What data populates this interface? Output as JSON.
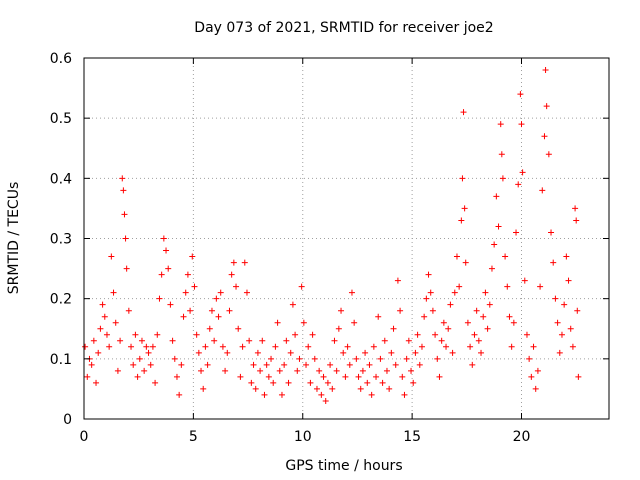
{
  "chart_data": {
    "type": "scatter",
    "title": "Day 073 of 2021, SRMTID for receiver joe2",
    "xlabel": "GPS time / hours",
    "ylabel": "SRMTID / TECUs",
    "xlim": [
      0,
      24
    ],
    "ylim": [
      0,
      0.6
    ],
    "xticks": [
      0,
      5,
      10,
      15,
      20
    ],
    "yticks": [
      0,
      0.1,
      0.2,
      0.3,
      0.4,
      0.5,
      0.6
    ],
    "grid": true,
    "marker": "plus",
    "color": "#ff0000",
    "series": [
      {
        "name": "SRMTID",
        "points": [
          [
            0.05,
            0.12
          ],
          [
            0.15,
            0.07
          ],
          [
            0.25,
            0.1
          ],
          [
            0.35,
            0.09
          ],
          [
            0.45,
            0.13
          ],
          [
            0.55,
            0.06
          ],
          [
            0.65,
            0.11
          ],
          [
            0.75,
            0.15
          ],
          [
            0.85,
            0.19
          ],
          [
            0.95,
            0.17
          ],
          [
            1.05,
            0.14
          ],
          [
            1.15,
            0.12
          ],
          [
            1.25,
            0.27
          ],
          [
            1.35,
            0.21
          ],
          [
            1.45,
            0.16
          ],
          [
            1.55,
            0.08
          ],
          [
            1.65,
            0.13
          ],
          [
            1.75,
            0.4
          ],
          [
            1.8,
            0.38
          ],
          [
            1.85,
            0.34
          ],
          [
            1.9,
            0.3
          ],
          [
            1.95,
            0.25
          ],
          [
            2.05,
            0.18
          ],
          [
            2.15,
            0.12
          ],
          [
            2.25,
            0.09
          ],
          [
            2.35,
            0.14
          ],
          [
            2.45,
            0.07
          ],
          [
            2.55,
            0.1
          ],
          [
            2.65,
            0.13
          ],
          [
            2.75,
            0.08
          ],
          [
            2.85,
            0.12
          ],
          [
            2.95,
            0.11
          ],
          [
            3.05,
            0.09
          ],
          [
            3.15,
            0.12
          ],
          [
            3.25,
            0.06
          ],
          [
            3.35,
            0.14
          ],
          [
            3.45,
            0.2
          ],
          [
            3.55,
            0.24
          ],
          [
            3.65,
            0.3
          ],
          [
            3.75,
            0.28
          ],
          [
            3.85,
            0.25
          ],
          [
            3.95,
            0.19
          ],
          [
            4.05,
            0.13
          ],
          [
            4.15,
            0.1
          ],
          [
            4.25,
            0.07
          ],
          [
            4.35,
            0.04
          ],
          [
            4.45,
            0.09
          ],
          [
            4.55,
            0.17
          ],
          [
            4.65,
            0.21
          ],
          [
            4.75,
            0.24
          ],
          [
            4.85,
            0.18
          ],
          [
            4.95,
            0.27
          ],
          [
            5.05,
            0.22
          ],
          [
            5.15,
            0.14
          ],
          [
            5.25,
            0.11
          ],
          [
            5.35,
            0.08
          ],
          [
            5.45,
            0.05
          ],
          [
            5.55,
            0.12
          ],
          [
            5.65,
            0.09
          ],
          [
            5.75,
            0.15
          ],
          [
            5.85,
            0.18
          ],
          [
            5.95,
            0.13
          ],
          [
            6.05,
            0.2
          ],
          [
            6.15,
            0.17
          ],
          [
            6.25,
            0.21
          ],
          [
            6.35,
            0.12
          ],
          [
            6.45,
            0.08
          ],
          [
            6.55,
            0.11
          ],
          [
            6.65,
            0.18
          ],
          [
            6.75,
            0.24
          ],
          [
            6.85,
            0.26
          ],
          [
            6.95,
            0.22
          ],
          [
            7.05,
            0.15
          ],
          [
            7.15,
            0.07
          ],
          [
            7.25,
            0.12
          ],
          [
            7.35,
            0.26
          ],
          [
            7.45,
            0.21
          ],
          [
            7.55,
            0.13
          ],
          [
            7.65,
            0.06
          ],
          [
            7.75,
            0.09
          ],
          [
            7.85,
            0.05
          ],
          [
            7.95,
            0.11
          ],
          [
            8.05,
            0.08
          ],
          [
            8.15,
            0.13
          ],
          [
            8.25,
            0.04
          ],
          [
            8.35,
            0.09
          ],
          [
            8.45,
            0.07
          ],
          [
            8.55,
            0.1
          ],
          [
            8.65,
            0.06
          ],
          [
            8.75,
            0.12
          ],
          [
            8.85,
            0.16
          ],
          [
            8.95,
            0.08
          ],
          [
            9.05,
            0.04
          ],
          [
            9.15,
            0.09
          ],
          [
            9.25,
            0.13
          ],
          [
            9.35,
            0.06
          ],
          [
            9.45,
            0.11
          ],
          [
            9.55,
            0.19
          ],
          [
            9.65,
            0.14
          ],
          [
            9.75,
            0.08
          ],
          [
            9.85,
            0.1
          ],
          [
            9.95,
            0.22
          ],
          [
            10.05,
            0.16
          ],
          [
            10.15,
            0.09
          ],
          [
            10.25,
            0.12
          ],
          [
            10.35,
            0.06
          ],
          [
            10.45,
            0.14
          ],
          [
            10.55,
            0.1
          ],
          [
            10.65,
            0.05
          ],
          [
            10.75,
            0.08
          ],
          [
            10.85,
            0.04
          ],
          [
            10.95,
            0.07
          ],
          [
            11.05,
            0.03
          ],
          [
            11.15,
            0.06
          ],
          [
            11.25,
            0.09
          ],
          [
            11.35,
            0.05
          ],
          [
            11.45,
            0.13
          ],
          [
            11.55,
            0.08
          ],
          [
            11.65,
            0.15
          ],
          [
            11.75,
            0.18
          ],
          [
            11.85,
            0.11
          ],
          [
            11.95,
            0.07
          ],
          [
            12.05,
            0.12
          ],
          [
            12.15,
            0.09
          ],
          [
            12.25,
            0.21
          ],
          [
            12.35,
            0.16
          ],
          [
            12.45,
            0.1
          ],
          [
            12.55,
            0.07
          ],
          [
            12.65,
            0.05
          ],
          [
            12.75,
            0.08
          ],
          [
            12.85,
            0.11
          ],
          [
            12.95,
            0.06
          ],
          [
            13.05,
            0.09
          ],
          [
            13.15,
            0.04
          ],
          [
            13.25,
            0.12
          ],
          [
            13.35,
            0.07
          ],
          [
            13.45,
            0.17
          ],
          [
            13.55,
            0.1
          ],
          [
            13.65,
            0.06
          ],
          [
            13.75,
            0.13
          ],
          [
            13.85,
            0.08
          ],
          [
            13.95,
            0.05
          ],
          [
            14.05,
            0.11
          ],
          [
            14.15,
            0.15
          ],
          [
            14.25,
            0.09
          ],
          [
            14.35,
            0.23
          ],
          [
            14.45,
            0.18
          ],
          [
            14.55,
            0.07
          ],
          [
            14.65,
            0.04
          ],
          [
            14.75,
            0.1
          ],
          [
            14.85,
            0.13
          ],
          [
            14.95,
            0.08
          ],
          [
            15.05,
            0.06
          ],
          [
            15.15,
            0.11
          ],
          [
            15.25,
            0.14
          ],
          [
            15.35,
            0.09
          ],
          [
            15.45,
            0.12
          ],
          [
            15.55,
            0.17
          ],
          [
            15.65,
            0.2
          ],
          [
            15.75,
            0.24
          ],
          [
            15.85,
            0.21
          ],
          [
            15.95,
            0.18
          ],
          [
            16.05,
            0.14
          ],
          [
            16.15,
            0.1
          ],
          [
            16.25,
            0.07
          ],
          [
            16.35,
            0.13
          ],
          [
            16.45,
            0.16
          ],
          [
            16.55,
            0.12
          ],
          [
            16.65,
            0.15
          ],
          [
            16.75,
            0.19
          ],
          [
            16.85,
            0.11
          ],
          [
            16.95,
            0.21
          ],
          [
            17.05,
            0.27
          ],
          [
            17.15,
            0.22
          ],
          [
            17.25,
            0.33
          ],
          [
            17.3,
            0.4
          ],
          [
            17.35,
            0.51
          ],
          [
            17.4,
            0.35
          ],
          [
            17.45,
            0.26
          ],
          [
            17.55,
            0.16
          ],
          [
            17.65,
            0.12
          ],
          [
            17.75,
            0.09
          ],
          [
            17.85,
            0.14
          ],
          [
            17.95,
            0.18
          ],
          [
            18.05,
            0.13
          ],
          [
            18.15,
            0.11
          ],
          [
            18.25,
            0.17
          ],
          [
            18.35,
            0.21
          ],
          [
            18.45,
            0.15
          ],
          [
            18.55,
            0.19
          ],
          [
            18.65,
            0.25
          ],
          [
            18.75,
            0.29
          ],
          [
            18.85,
            0.37
          ],
          [
            18.95,
            0.32
          ],
          [
            19.05,
            0.49
          ],
          [
            19.1,
            0.44
          ],
          [
            19.15,
            0.4
          ],
          [
            19.25,
            0.27
          ],
          [
            19.35,
            0.22
          ],
          [
            19.45,
            0.17
          ],
          [
            19.55,
            0.12
          ],
          [
            19.65,
            0.16
          ],
          [
            19.75,
            0.31
          ],
          [
            19.85,
            0.39
          ],
          [
            19.95,
            0.54
          ],
          [
            20.0,
            0.49
          ],
          [
            20.05,
            0.41
          ],
          [
            20.15,
            0.23
          ],
          [
            20.25,
            0.14
          ],
          [
            20.35,
            0.1
          ],
          [
            20.45,
            0.07
          ],
          [
            20.55,
            0.12
          ],
          [
            20.65,
            0.05
          ],
          [
            20.75,
            0.08
          ],
          [
            20.85,
            0.22
          ],
          [
            20.95,
            0.38
          ],
          [
            21.05,
            0.47
          ],
          [
            21.1,
            0.58
          ],
          [
            21.15,
            0.52
          ],
          [
            21.25,
            0.44
          ],
          [
            21.35,
            0.31
          ],
          [
            21.45,
            0.26
          ],
          [
            21.55,
            0.2
          ],
          [
            21.65,
            0.16
          ],
          [
            21.75,
            0.11
          ],
          [
            21.85,
            0.14
          ],
          [
            21.95,
            0.19
          ],
          [
            22.05,
            0.27
          ],
          [
            22.15,
            0.23
          ],
          [
            22.25,
            0.15
          ],
          [
            22.35,
            0.12
          ],
          [
            22.45,
            0.35
          ],
          [
            22.5,
            0.33
          ],
          [
            22.55,
            0.18
          ],
          [
            22.6,
            0.07
          ]
        ]
      }
    ]
  }
}
